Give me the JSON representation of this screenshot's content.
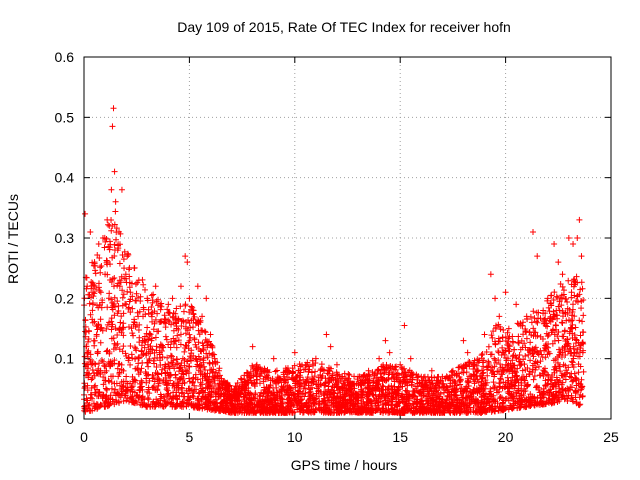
{
  "chart_data": {
    "type": "scatter",
    "title": "Day 109 of 2015, Rate Of TEC Index for receiver hofn",
    "xlabel": "GPS time / hours",
    "ylabel": "ROTI / TECUs",
    "xlim": [
      0,
      25
    ],
    "ylim": [
      0,
      0.6
    ],
    "xticks": [
      0,
      5,
      10,
      15,
      20,
      25
    ],
    "xtick_labels": [
      "0",
      "5",
      "10",
      "15",
      "20",
      "25"
    ],
    "yticks": [
      0,
      0.1,
      0.2,
      0.3,
      0.4,
      0.5,
      0.6
    ],
    "ytick_labels": [
      "0",
      "0.1",
      "0.2",
      "0.3",
      "0.4",
      "0.5",
      "0.6"
    ],
    "grid": true,
    "marker": "+",
    "color": "#ff0000",
    "series": [
      {
        "name": "ROTI",
        "x": [
          0.0,
          0.05,
          0.1,
          0.15,
          0.2,
          0.3,
          0.4,
          0.5,
          0.6,
          0.7,
          0.8,
          0.9,
          1.0,
          1.1,
          1.2,
          1.3,
          1.35,
          1.4,
          1.45,
          1.5,
          1.6,
          1.7,
          1.8,
          1.9,
          2.0,
          2.2,
          2.4,
          2.6,
          2.8,
          3.0,
          3.2,
          3.4,
          3.6,
          3.8,
          4.0,
          4.2,
          4.4,
          4.6,
          4.8,
          4.9,
          5.0,
          5.2,
          5.4,
          5.6,
          5.8,
          6.0,
          6.2,
          6.4,
          6.6,
          6.8,
          7.0,
          7.5,
          8.0,
          8.2,
          8.5,
          9.0,
          9.5,
          10.0,
          10.2,
          10.5,
          11.0,
          11.5,
          11.7,
          12.0,
          12.5,
          13.0,
          13.5,
          14.0,
          14.3,
          14.5,
          15.0,
          15.2,
          15.5,
          16.0,
          16.5,
          17.0,
          17.5,
          18.0,
          18.2,
          18.5,
          19.0,
          19.3,
          19.5,
          19.7,
          20.0,
          20.5,
          21.0,
          21.3,
          21.5,
          22.0,
          22.3,
          22.5,
          22.7,
          23.0,
          23.2,
          23.4,
          23.5,
          23.6
        ],
        "y": [
          0.04,
          0.34,
          0.12,
          0.22,
          0.09,
          0.31,
          0.18,
          0.26,
          0.14,
          0.29,
          0.21,
          0.3,
          0.24,
          0.33,
          0.32,
          0.38,
          0.485,
          0.515,
          0.41,
          0.36,
          0.28,
          0.22,
          0.38,
          0.25,
          0.19,
          0.21,
          0.16,
          0.23,
          0.17,
          0.2,
          0.13,
          0.22,
          0.11,
          0.16,
          0.19,
          0.2,
          0.15,
          0.22,
          0.27,
          0.26,
          0.2,
          0.18,
          0.22,
          0.17,
          0.2,
          0.14,
          0.1,
          0.08,
          0.06,
          0.06,
          0.05,
          0.06,
          0.12,
          0.09,
          0.08,
          0.1,
          0.07,
          0.11,
          0.08,
          0.09,
          0.1,
          0.14,
          0.12,
          0.09,
          0.06,
          0.07,
          0.08,
          0.1,
          0.13,
          0.11,
          0.09,
          0.155,
          0.1,
          0.07,
          0.08,
          0.07,
          0.08,
          0.13,
          0.11,
          0.09,
          0.14,
          0.24,
          0.2,
          0.17,
          0.21,
          0.19,
          0.17,
          0.31,
          0.27,
          0.2,
          0.29,
          0.26,
          0.24,
          0.3,
          0.29,
          0.3,
          0.33,
          0.27
        ]
      }
    ],
    "band_upper": [
      [
        0,
        0.23
      ],
      [
        0.5,
        0.27
      ],
      [
        1.0,
        0.31
      ],
      [
        1.4,
        0.36
      ],
      [
        2.0,
        0.28
      ],
      [
        3.0,
        0.22
      ],
      [
        4.0,
        0.18
      ],
      [
        5.0,
        0.2
      ],
      [
        6.0,
        0.13
      ],
      [
        6.5,
        0.08
      ],
      [
        7.0,
        0.05
      ],
      [
        8.0,
        0.09
      ],
      [
        9.0,
        0.08
      ],
      [
        10.0,
        0.09
      ],
      [
        11.0,
        0.1
      ],
      [
        12.0,
        0.08
      ],
      [
        13.0,
        0.07
      ],
      [
        14.0,
        0.09
      ],
      [
        15.0,
        0.09
      ],
      [
        16.0,
        0.07
      ],
      [
        17.0,
        0.07
      ],
      [
        18.0,
        0.09
      ],
      [
        19.0,
        0.11
      ],
      [
        19.5,
        0.16
      ],
      [
        20.0,
        0.15
      ],
      [
        21.0,
        0.17
      ],
      [
        22.0,
        0.2
      ],
      [
        23.0,
        0.24
      ],
      [
        23.7,
        0.24
      ]
    ],
    "band_lower": [
      [
        0,
        0.01
      ],
      [
        2.0,
        0.03
      ],
      [
        3.0,
        0.02
      ],
      [
        5.0,
        0.02
      ],
      [
        7.0,
        0.01
      ],
      [
        10.0,
        0.01
      ],
      [
        15.0,
        0.01
      ],
      [
        19.0,
        0.01
      ],
      [
        21.0,
        0.02
      ],
      [
        23.0,
        0.03
      ],
      [
        23.7,
        0.02
      ]
    ]
  }
}
